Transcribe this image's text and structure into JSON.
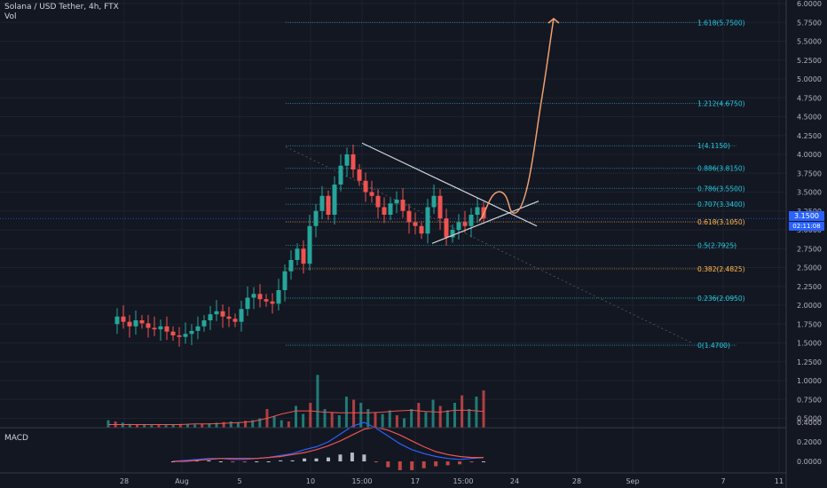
{
  "header": {
    "title": "Solana / USD Tether, 4h, FTX",
    "volume_label": "Vol"
  },
  "macd_label": "MACD",
  "last_price_badge": "3.1500",
  "countdown_badge": "02:11:08",
  "colors": {
    "background": "#131722",
    "up": "#26a69a",
    "down": "#ef5350",
    "fib_line": "#26c6da",
    "fib_highlight": "#ffb74d",
    "projection": "#f0a070",
    "trendline": "#d1d4dc",
    "macd_line": "#2962ff",
    "signal_line": "#ef5350",
    "price_marker": "#2962ff"
  },
  "chart_data": {
    "type": "candlestick",
    "title": "Solana / USD Tether, 4h, FTX",
    "y_ticks": [
      "6.0000",
      "5.7500",
      "5.5000",
      "5.2500",
      "5.0000",
      "4.7500",
      "4.5000",
      "4.2500",
      "4.0000",
      "3.7500",
      "3.5000",
      "3.2500",
      "3.0000",
      "2.7500",
      "2.5000",
      "2.2500",
      "2.0000",
      "1.7500",
      "1.5000",
      "1.2500",
      "1.0000",
      "0.7500",
      "0.5000"
    ],
    "x_ticks": [
      "28",
      "Aug",
      "5",
      "10",
      "15:00",
      "17",
      "15:00",
      "24",
      "28",
      "Sep",
      "7",
      "11"
    ],
    "macd_ticks": [
      "0.4000",
      "0.2000",
      "0.0000"
    ],
    "price_ylim": [
      0.4,
      6.0
    ],
    "last_price": 3.15,
    "fib_levels": [
      {
        "ratio": "1.618",
        "price": 5.75,
        "label": "1.618(5.7500)"
      },
      {
        "ratio": "1.212",
        "price": 4.675,
        "label": "1.212(4.6750)"
      },
      {
        "ratio": "1",
        "price": 4.115,
        "label": "1(4.1150)"
      },
      {
        "ratio": "0.886",
        "price": 3.815,
        "label": "0.886(3.8150)"
      },
      {
        "ratio": "0.786",
        "price": 3.55,
        "label": "0.786(3.5500)"
      },
      {
        "ratio": "0.707",
        "price": 3.34,
        "label": "0.707(3.3400)"
      },
      {
        "ratio": "0.618",
        "price": 3.105,
        "label": "0.618(3.1050)",
        "highlight": true
      },
      {
        "ratio": "0.5",
        "price": 2.7925,
        "label": "0.5(2.7925)"
      },
      {
        "ratio": "0.382",
        "price": 2.4825,
        "label": "0.382(2.4825)",
        "highlight": true
      },
      {
        "ratio": "0.236",
        "price": 2.095,
        "label": "0.236(2.0950)"
      },
      {
        "ratio": "0",
        "price": 1.47,
        "label": "0(1.4700)"
      }
    ],
    "price_path": [
      1.75,
      1.85,
      1.78,
      1.72,
      1.8,
      1.76,
      1.7,
      1.68,
      1.72,
      1.65,
      1.6,
      1.58,
      1.62,
      1.66,
      1.72,
      1.8,
      1.88,
      1.92,
      1.85,
      1.82,
      1.78,
      1.95,
      2.1,
      2.15,
      2.08,
      2.05,
      2.02,
      2.2,
      2.45,
      2.6,
      2.75,
      2.55,
      3.05,
      3.25,
      3.45,
      3.2,
      3.6,
      3.85,
      4.0,
      3.8,
      3.65,
      3.5,
      3.45,
      3.3,
      3.2,
      3.35,
      3.4,
      3.25,
      3.1,
      3.05,
      2.95,
      3.3,
      3.45,
      3.15,
      2.9,
      3.0,
      3.1,
      3.05,
      3.2,
      3.3,
      3.15
    ],
    "volume_path": [
      0.12,
      0.1,
      0.08,
      0.06,
      0.05,
      0.05,
      0.04,
      0.05,
      0.04,
      0.05,
      0.06,
      0.05,
      0.05,
      0.06,
      0.07,
      0.08,
      0.09,
      0.1,
      0.09,
      0.11,
      0.12,
      0.15,
      0.3,
      0.18,
      0.12,
      0.1,
      0.35,
      0.22,
      0.4,
      0.85,
      0.3,
      0.25,
      0.2,
      0.5,
      0.45,
      0.4,
      0.3,
      0.25,
      0.22,
      0.28,
      0.2,
      0.15,
      0.3,
      0.4,
      0.25,
      0.45,
      0.35,
      0.28,
      0.4,
      0.52,
      0.3,
      0.5,
      0.6
    ],
    "volume_ma": [
      0.05,
      0.05,
      0.05,
      0.05,
      0.05,
      0.05,
      0.06,
      0.06,
      0.07,
      0.08,
      0.1,
      0.15,
      0.22,
      0.27,
      0.27,
      0.25,
      0.24,
      0.24,
      0.24,
      0.25,
      0.27,
      0.28,
      0.26,
      0.25,
      0.28,
      0.28,
      0.26
    ],
    "macd_line": [
      0.0,
      0.01,
      0.02,
      0.03,
      0.03,
      0.02,
      0.02,
      0.03,
      0.04,
      0.06,
      0.08,
      0.12,
      0.15,
      0.2,
      0.28,
      0.36,
      0.4,
      0.34,
      0.26,
      0.18,
      0.12,
      0.08,
      0.05,
      0.03,
      0.02,
      0.03,
      0.04
    ],
    "signal_line": [
      0.0,
      0.0,
      0.01,
      0.02,
      0.03,
      0.03,
      0.03,
      0.03,
      0.04,
      0.05,
      0.07,
      0.09,
      0.12,
      0.16,
      0.21,
      0.27,
      0.33,
      0.35,
      0.32,
      0.27,
      0.21,
      0.15,
      0.1,
      0.07,
      0.05,
      0.04,
      0.04
    ]
  }
}
